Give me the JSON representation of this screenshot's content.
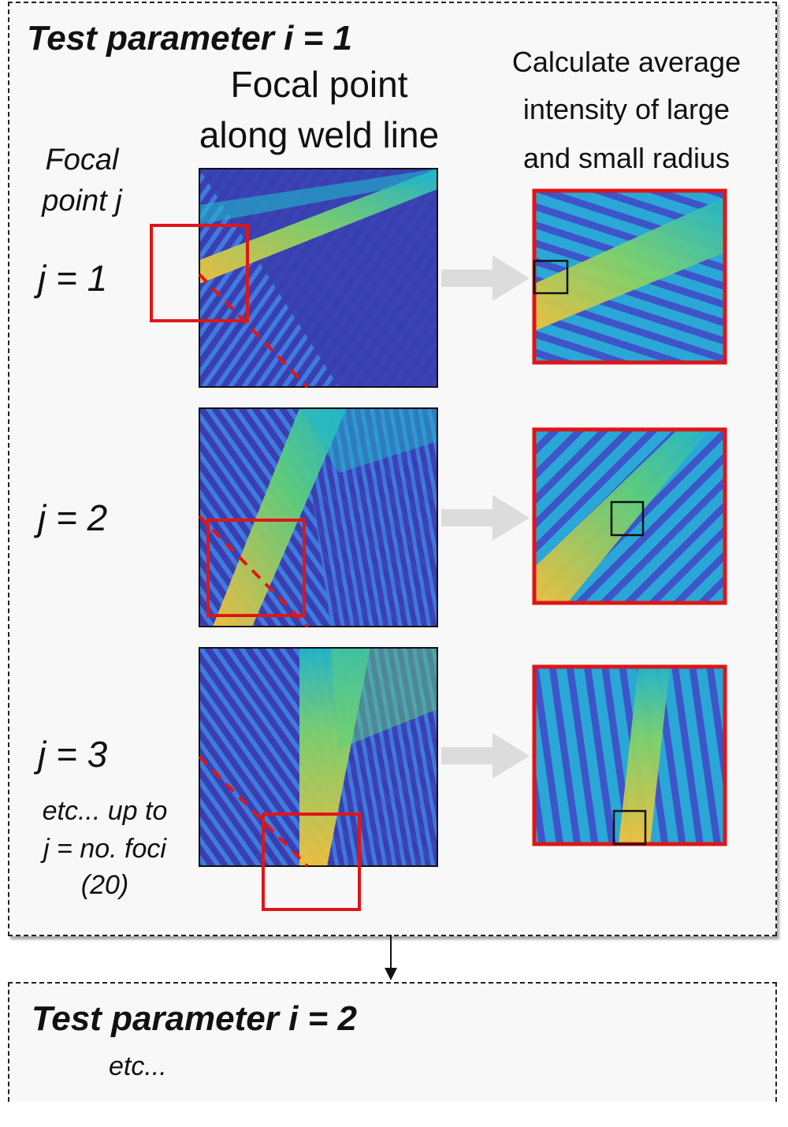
{
  "panel1": {
    "title": "Test parameter i = 1",
    "column_title_line1": "Focal point",
    "column_title_line2": "along weld line",
    "right_title_line1": "Calculate average",
    "right_title_line2": "intensity of large",
    "right_title_line3": "and small radius",
    "row_header_line1": "Focal",
    "row_header_line2": "point j",
    "rows": [
      {
        "label": "j = 1"
      },
      {
        "label": "j = 2"
      },
      {
        "label": "j = 3"
      }
    ],
    "footnote_line1": "etc... up to",
    "footnote_line2": "j = no. foci",
    "footnote_line3": "(20)"
  },
  "panel2": {
    "title": "Test parameter i = 2",
    "subtitle": "etc..."
  },
  "colors": {
    "map_low": "#3a3fb0",
    "map_mid": "#22b7c9",
    "map_high": "#f4c23a",
    "box": "#e01515",
    "arrow": "#dcdcdc"
  }
}
